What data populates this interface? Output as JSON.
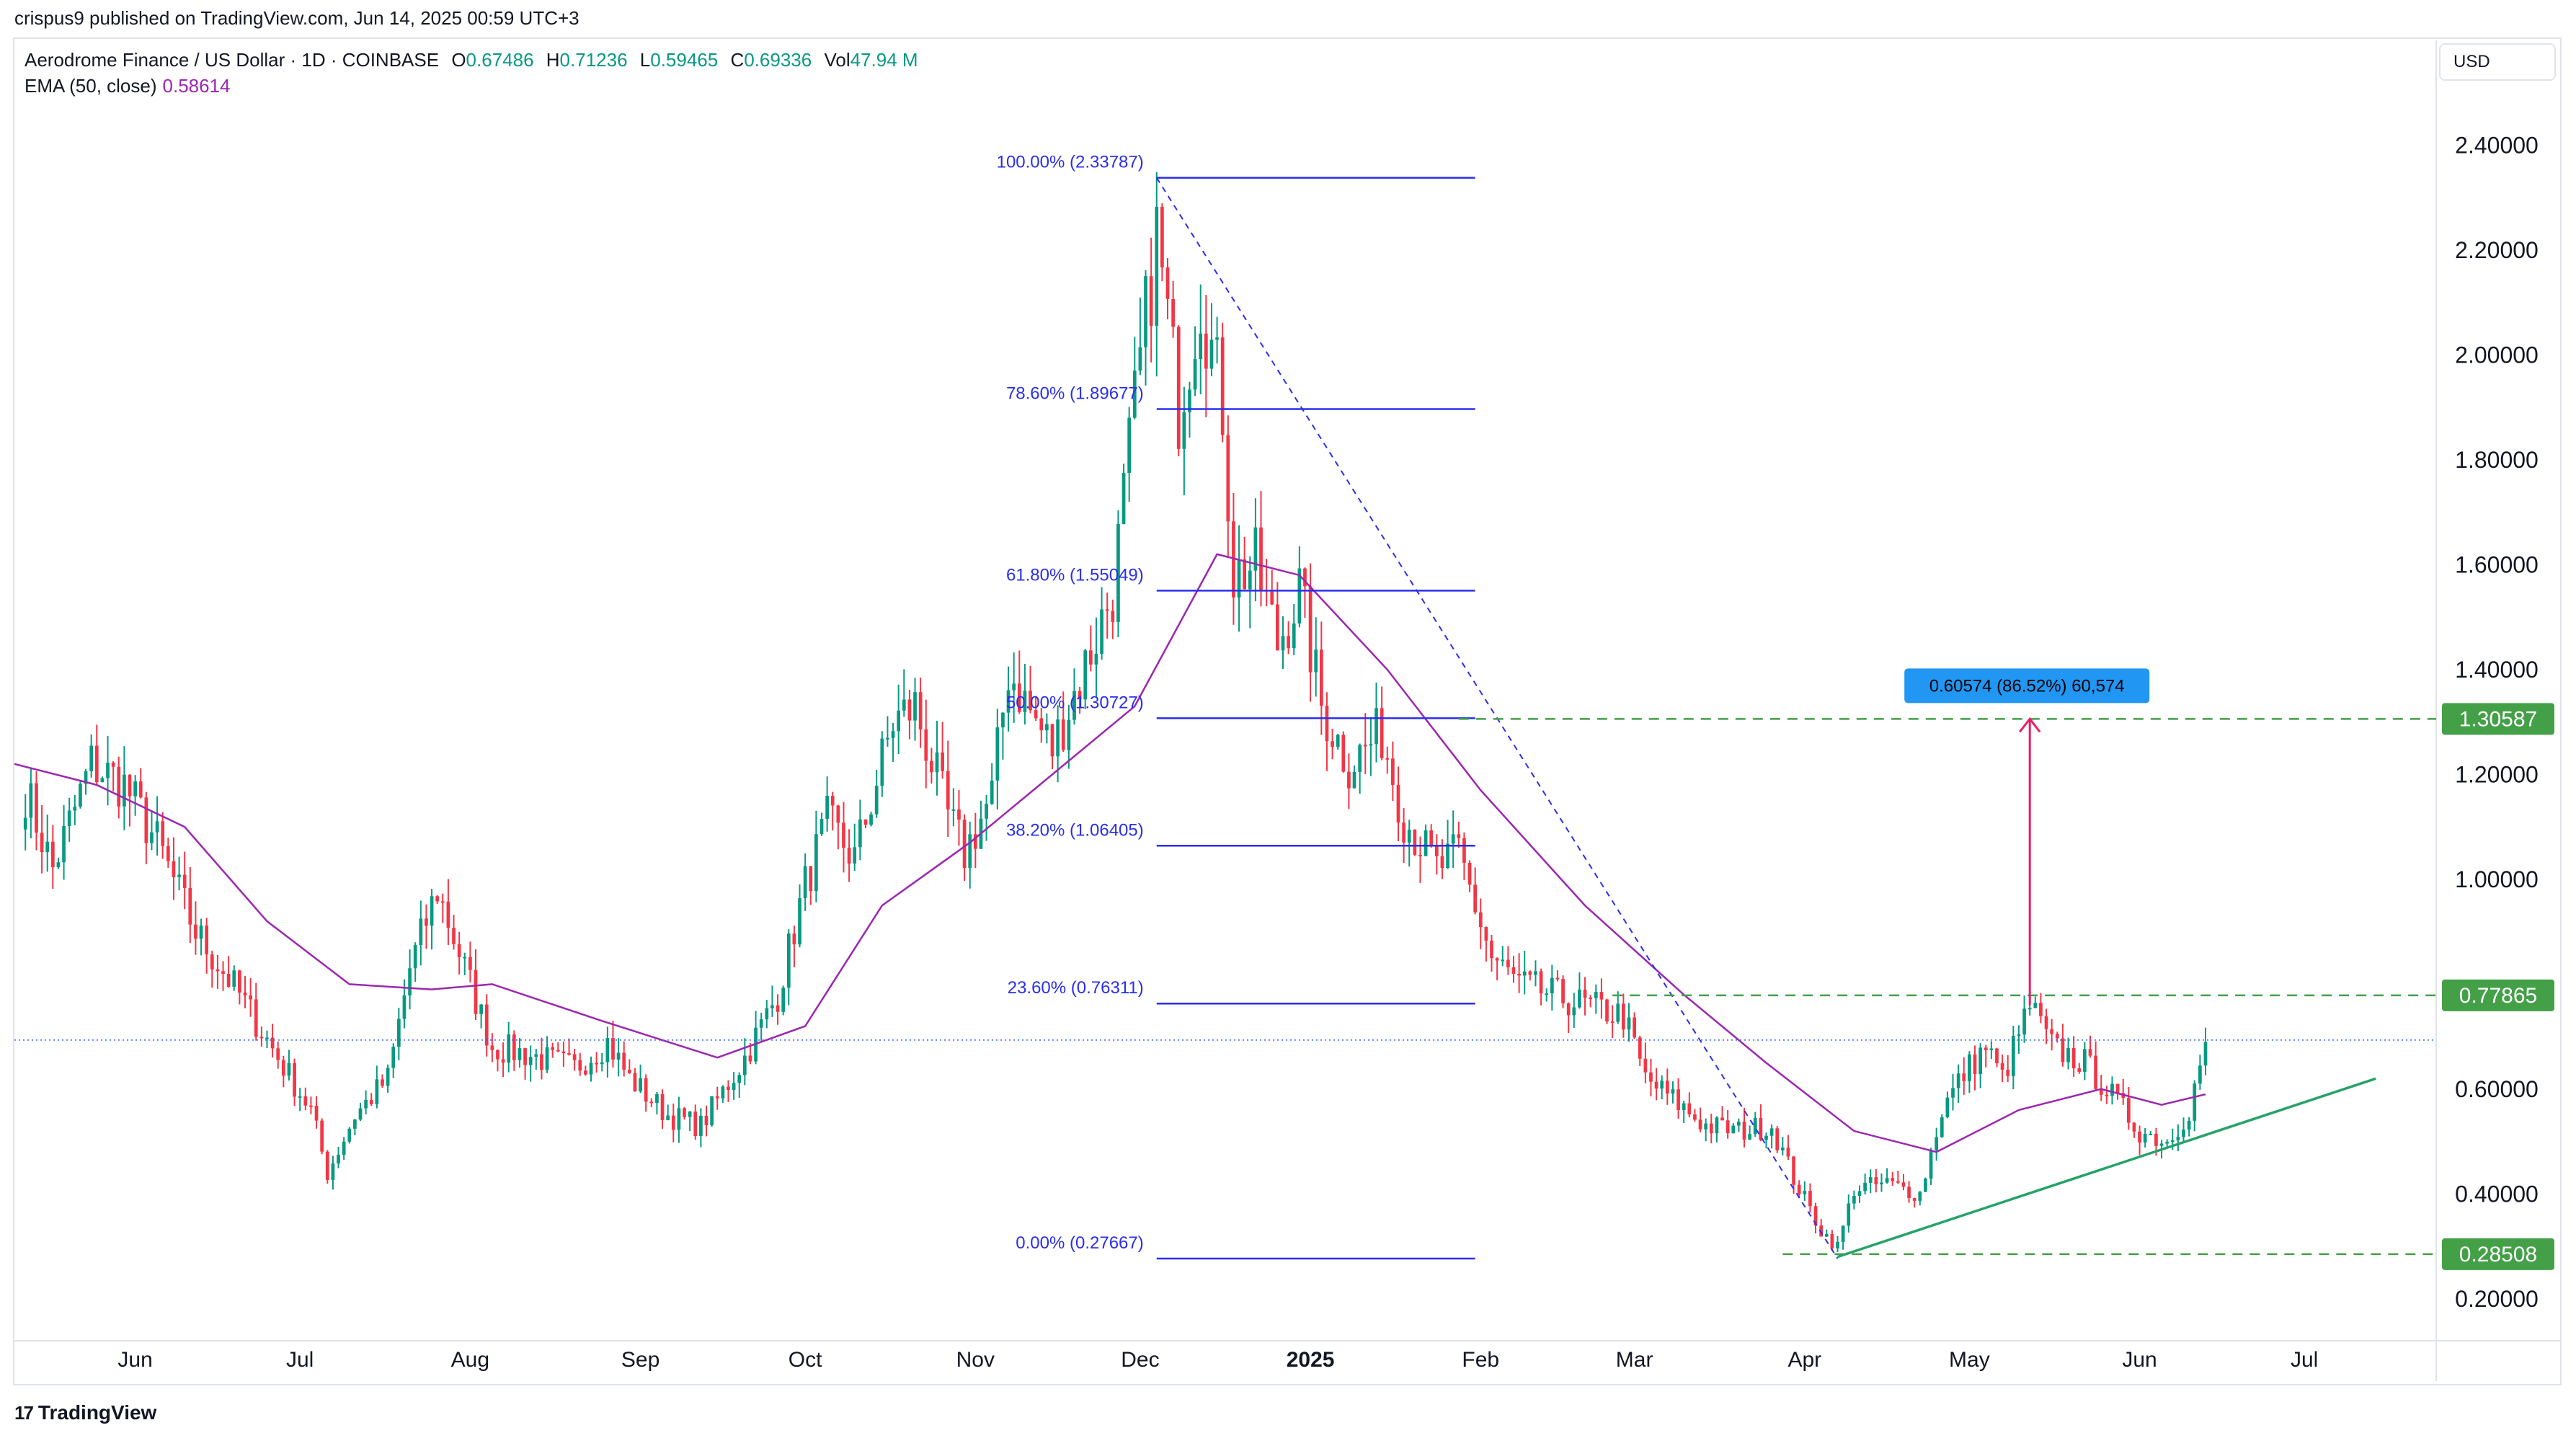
{
  "header": {
    "published_line": "crispus9 published on TradingView.com, Jun 14, 2025 00:59 UTC+3"
  },
  "legend": {
    "symbol": "Aerodrome Finance / US Dollar · 1D · COINBASE",
    "o_label": "O",
    "o_value": "0.67486",
    "h_label": "H",
    "h_value": "0.71236",
    "l_label": "L",
    "l_value": "0.59465",
    "c_label": "C",
    "c_value": "0.69336",
    "vol_label": "Vol",
    "vol_value": "47.94 M",
    "ema_label": "EMA (50, close)",
    "ema_value": "0.58614"
  },
  "currency": "USD",
  "footer": {
    "brand": "TradingView",
    "mark": "17"
  },
  "colors": {
    "up": "#089981",
    "down": "#f23645",
    "ema": "#9c27b0",
    "fib": "#2a2ef0",
    "level": "#43a047",
    "trend": "#26a269",
    "arrow": "#e91e63",
    "measure_bg": "#2196f3",
    "grid_text": "#131722"
  },
  "chart_data": {
    "type": "candlestick",
    "x_axis": {
      "ticks": [
        {
          "label": "Jun",
          "date": "2024-06-01"
        },
        {
          "label": "Jul",
          "date": "2024-07-01"
        },
        {
          "label": "Aug",
          "date": "2024-08-01"
        },
        {
          "label": "Sep",
          "date": "2024-09-01"
        },
        {
          "label": "Oct",
          "date": "2024-10-01"
        },
        {
          "label": "Nov",
          "date": "2024-11-01"
        },
        {
          "label": "Dec",
          "date": "2024-12-01"
        },
        {
          "label": "2025",
          "date": "2025-01-01",
          "bold": true
        },
        {
          "label": "Feb",
          "date": "2025-02-01"
        },
        {
          "label": "Mar",
          "date": "2025-03-01"
        },
        {
          "label": "Apr",
          "date": "2025-04-01"
        },
        {
          "label": "May",
          "date": "2025-05-01"
        },
        {
          "label": "Jun",
          "date": "2025-06-01"
        },
        {
          "label": "Jul",
          "date": "2025-07-01"
        }
      ],
      "range": [
        "2024-05-10",
        "2025-07-25"
      ]
    },
    "y_axis": {
      "ticks": [
        "2.40000",
        "2.20000",
        "2.00000",
        "1.80000",
        "1.60000",
        "1.40000",
        "1.20000",
        "1.00000",
        "0.60000",
        "0.40000",
        "0.20000"
      ],
      "range": [
        0.12,
        2.6
      ]
    },
    "price_anchors": [
      [
        "2024-05-12",
        1.17
      ],
      [
        "2024-05-17",
        1.02
      ],
      [
        "2024-05-24",
        1.22
      ],
      [
        "2024-05-30",
        1.18
      ],
      [
        "2024-06-05",
        1.07
      ],
      [
        "2024-06-12",
        0.9
      ],
      [
        "2024-06-20",
        0.78
      ],
      [
        "2024-06-27",
        0.66
      ],
      [
        "2024-07-03",
        0.56
      ],
      [
        "2024-07-06",
        0.44
      ],
      [
        "2024-07-11",
        0.55
      ],
      [
        "2024-07-17",
        0.62
      ],
      [
        "2024-07-21",
        0.83
      ],
      [
        "2024-07-26",
        0.98
      ],
      [
        "2024-07-30",
        0.86
      ],
      [
        "2024-08-05",
        0.68
      ],
      [
        "2024-08-10",
        0.67
      ],
      [
        "2024-08-20",
        0.64
      ],
      [
        "2024-08-26",
        0.69
      ],
      [
        "2024-08-30",
        0.62
      ],
      [
        "2024-09-06",
        0.55
      ],
      [
        "2024-09-12",
        0.53
      ],
      [
        "2024-09-20",
        0.66
      ],
      [
        "2024-09-26",
        0.78
      ],
      [
        "2024-10-01",
        0.99
      ],
      [
        "2024-10-05",
        1.11
      ],
      [
        "2024-10-10",
        1.04
      ],
      [
        "2024-10-17",
        1.3
      ],
      [
        "2024-10-21",
        1.33
      ],
      [
        "2024-10-27",
        1.12
      ],
      [
        "2024-10-30",
        1.05
      ],
      [
        "2024-11-04",
        1.16
      ],
      [
        "2024-11-07",
        1.4
      ],
      [
        "2024-11-12",
        1.3
      ],
      [
        "2024-11-15",
        1.25
      ],
      [
        "2024-11-20",
        1.38
      ],
      [
        "2024-11-26",
        1.55
      ],
      [
        "2024-11-30",
        1.9
      ],
      [
        "2024-12-04",
        2.23
      ],
      [
        "2024-12-08",
        1.9
      ],
      [
        "2024-12-12",
        2.12
      ],
      [
        "2024-12-16",
        1.9
      ],
      [
        "2024-12-18",
        1.58
      ],
      [
        "2024-12-22",
        1.6
      ],
      [
        "2024-12-26",
        1.45
      ],
      [
        "2024-12-30",
        1.55
      ],
      [
        "2025-01-03",
        1.33
      ],
      [
        "2025-01-08",
        1.22
      ],
      [
        "2025-01-14",
        1.28
      ],
      [
        "2025-01-18",
        1.12
      ],
      [
        "2025-01-24",
        1.02
      ],
      [
        "2025-01-28",
        1.05
      ],
      [
        "2025-02-03",
        0.85
      ],
      [
        "2025-02-08",
        0.8
      ],
      [
        "2025-02-14",
        0.78
      ],
      [
        "2025-02-20",
        0.76
      ],
      [
        "2025-02-27",
        0.74
      ],
      [
        "2025-03-03",
        0.62
      ],
      [
        "2025-03-08",
        0.58
      ],
      [
        "2025-03-14",
        0.53
      ],
      [
        "2025-03-20",
        0.52
      ],
      [
        "2025-03-26",
        0.53
      ],
      [
        "2025-03-30",
        0.43
      ],
      [
        "2025-04-04",
        0.33
      ],
      [
        "2025-04-07",
        0.3
      ],
      [
        "2025-04-10",
        0.41
      ],
      [
        "2025-04-16",
        0.42
      ],
      [
        "2025-04-22",
        0.4
      ],
      [
        "2025-04-26",
        0.56
      ],
      [
        "2025-04-30",
        0.63
      ],
      [
        "2025-05-04",
        0.68
      ],
      [
        "2025-05-07",
        0.62
      ],
      [
        "2025-05-12",
        0.76
      ],
      [
        "2025-05-16",
        0.68
      ],
      [
        "2025-05-22",
        0.65
      ],
      [
        "2025-05-26",
        0.6
      ],
      [
        "2025-06-01",
        0.52
      ],
      [
        "2025-06-06",
        0.5
      ],
      [
        "2025-06-10",
        0.56
      ],
      [
        "2025-06-13",
        0.69
      ]
    ],
    "ema_anchors": [
      [
        "2024-05-10",
        1.22
      ],
      [
        "2024-05-25",
        1.18
      ],
      [
        "2024-06-10",
        1.1
      ],
      [
        "2024-06-25",
        0.92
      ],
      [
        "2024-07-10",
        0.8
      ],
      [
        "2024-07-25",
        0.79
      ],
      [
        "2024-08-05",
        0.8
      ],
      [
        "2024-08-25",
        0.73
      ],
      [
        "2024-09-15",
        0.66
      ],
      [
        "2024-10-01",
        0.72
      ],
      [
        "2024-10-15",
        0.95
      ],
      [
        "2024-10-31",
        1.07
      ],
      [
        "2024-11-15",
        1.2
      ],
      [
        "2024-11-30",
        1.33
      ],
      [
        "2024-12-15",
        1.62
      ],
      [
        "2024-12-30",
        1.58
      ],
      [
        "2025-01-15",
        1.4
      ],
      [
        "2025-02-01",
        1.17
      ],
      [
        "2025-02-20",
        0.95
      ],
      [
        "2025-03-10",
        0.78
      ],
      [
        "2025-03-25",
        0.65
      ],
      [
        "2025-04-10",
        0.52
      ],
      [
        "2025-04-25",
        0.48
      ],
      [
        "2025-05-10",
        0.56
      ],
      [
        "2025-05-25",
        0.6
      ],
      [
        "2025-06-05",
        0.57
      ],
      [
        "2025-06-13",
        0.59
      ]
    ],
    "fibonacci": {
      "from_date": "2024-12-04",
      "to_date": "2025-01-31",
      "high_date": "2024-12-04",
      "low_date": "2025-04-07",
      "levels": [
        {
          "label": "100.00% (2.33787)",
          "value": 2.33787
        },
        {
          "label": "78.60% (1.89677)",
          "value": 1.89677
        },
        {
          "label": "61.80% (1.55049)",
          "value": 1.55049
        },
        {
          "label": "50.00% (1.30727)",
          "value": 1.30727
        },
        {
          "label": "38.20% (1.06405)",
          "value": 1.06405
        },
        {
          "label": "23.60% (0.76311)",
          "value": 0.76311
        },
        {
          "label": "0.00% (0.27667)",
          "value": 0.27667
        }
      ]
    },
    "horizontal_levels": [
      {
        "label": "1.30587",
        "value": 1.30587,
        "from_date": "2025-01-28"
      },
      {
        "label": "0.77865",
        "value": 0.77865,
        "from_date": "2025-02-25"
      },
      {
        "label": "0.28508",
        "value": 0.28508,
        "from_date": "2025-03-28"
      }
    ],
    "trendline": {
      "from": [
        "2025-04-07",
        0.28
      ],
      "to": [
        "2025-07-14",
        0.62
      ]
    },
    "measure": {
      "label": "0.60574 (86.52%) 60,574",
      "date": "2025-05-12",
      "from": 0.76,
      "to": 1.30587
    },
    "last_price": 0.69336,
    "legend": [
      {
        "name": "EMA (50, close)"
      }
    ]
  }
}
